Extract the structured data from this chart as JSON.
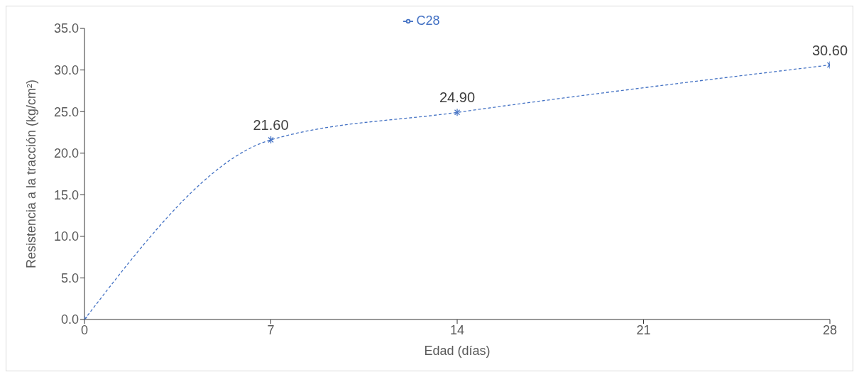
{
  "chart_data": {
    "type": "line",
    "xlabel": "Edad (días)",
    "ylabel": "Resistencia a la tracción (kg/cm²)",
    "x": [
      0,
      7,
      14,
      28
    ],
    "series": [
      {
        "name": "C28",
        "color": "#4472c4",
        "values": [
          0,
          21.6,
          24.9,
          30.6
        ],
        "value_labels": [
          null,
          "21.60",
          "24.90",
          "30.60"
        ]
      }
    ],
    "xlim": [
      0,
      28
    ],
    "xticks": [
      0,
      7,
      14,
      21,
      28
    ],
    "ylim": [
      0,
      35
    ],
    "yticks": [
      {
        "value": 0,
        "label": "0.0"
      },
      {
        "value": 5,
        "label": "5.0"
      },
      {
        "value": 10,
        "label": "10.0"
      },
      {
        "value": 15,
        "label": "15.0"
      },
      {
        "value": 20,
        "label": "20.0"
      },
      {
        "value": 25,
        "label": "25.0"
      },
      {
        "value": 30,
        "label": "30.0"
      },
      {
        "value": 35,
        "label": "35.0"
      }
    ],
    "legend": "top",
    "marker": "cross",
    "line_style": "dashed",
    "grid": false
  }
}
